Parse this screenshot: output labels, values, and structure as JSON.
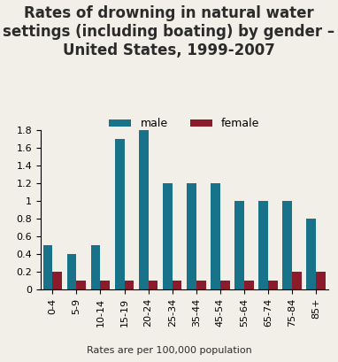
{
  "chart_data": {
    "type": "bar",
    "title": "Rates of drowning in natural water settings (including boating) by gender – United States, 1999-2007",
    "footnote": "Rates are per 100,000 population",
    "categories": [
      "0-4",
      "5-9",
      "10-14",
      "15-19",
      "20-24",
      "25-34",
      "35-44",
      "45-54",
      "55-64",
      "65-74",
      "75-84",
      "85+"
    ],
    "series": [
      {
        "name": "male",
        "color": "#17728a",
        "values": [
          0.5,
          0.4,
          0.5,
          1.7,
          1.8,
          1.2,
          1.2,
          1.2,
          1.0,
          1.0,
          1.0,
          0.8
        ]
      },
      {
        "name": "female",
        "color": "#8b1a2b",
        "values": [
          0.2,
          0.1,
          0.1,
          0.1,
          0.1,
          0.1,
          0.1,
          0.1,
          0.1,
          0.1,
          0.2,
          0.2
        ]
      }
    ],
    "ylim": [
      0,
      1.8
    ],
    "yticks": [
      0,
      0.2,
      0.4,
      0.6,
      0.8,
      1,
      1.2,
      1.4,
      1.6,
      1.8
    ],
    "grid": false,
    "legend": "upper center"
  }
}
